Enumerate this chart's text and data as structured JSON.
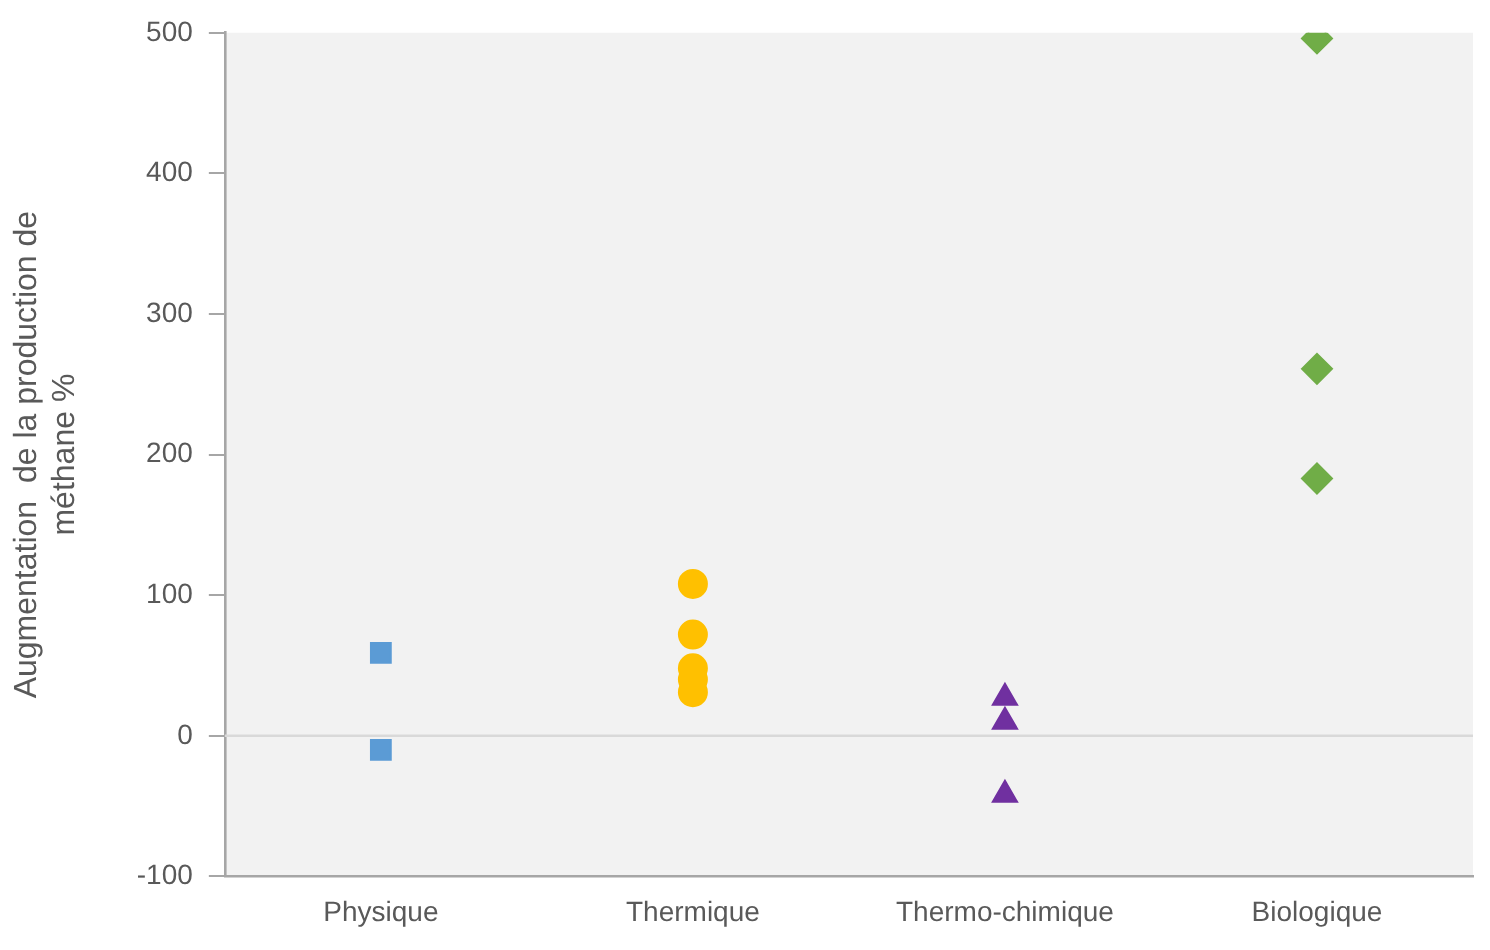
{
  "chart_data": {
    "type": "scatter",
    "ylabel": "Augmentation  de la production de méthane %",
    "categories": [
      "Physique",
      "Thermique",
      "Thermo-chimique",
      "Biologique"
    ],
    "series": [
      {
        "x": [
          "Physique",
          "Physique"
        ],
        "values": [
          59,
          -10
        ],
        "color": "#5b9bd5",
        "marker": "square"
      },
      {
        "x": [
          "Thermique",
          "Thermique",
          "Thermique",
          "Thermique",
          "Thermique"
        ],
        "values": [
          108,
          72,
          48,
          40,
          31
        ],
        "color": "#ffc000",
        "marker": "circle"
      },
      {
        "x": [
          "Thermo-chimique",
          "Thermo-chimique",
          "Thermo-chimique"
        ],
        "values": [
          27,
          10,
          -42
        ],
        "color": "#7030a0",
        "marker": "triangle"
      },
      {
        "x": [
          "Biologique",
          "Biologique",
          "Biologique"
        ],
        "values": [
          496,
          261,
          183
        ],
        "color": "#70ad47",
        "marker": "diamond"
      }
    ],
    "ylim": [
      -100,
      500
    ],
    "yticks": [
      -100,
      0,
      100,
      200,
      300,
      400,
      500
    ],
    "grid": false,
    "legend": false,
    "ref_lines": [
      {
        "axis": "y",
        "value": 0,
        "color": "#d9d9d9"
      }
    ]
  }
}
